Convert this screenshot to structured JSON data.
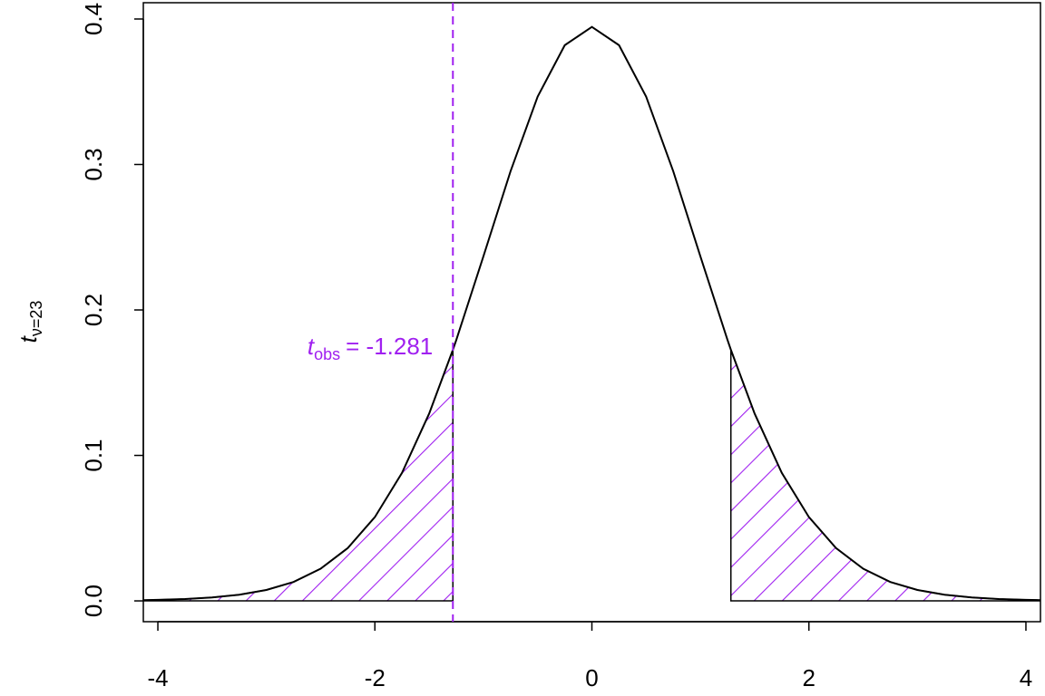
{
  "chart_data": {
    "type": "line",
    "ylabel": {
      "main": "t",
      "sub": "ν=23"
    },
    "x": [
      -4.13,
      -4,
      -3.75,
      -3.5,
      -3.25,
      -3,
      -2.75,
      -2.5,
      -2.25,
      -2,
      -1.75,
      -1.5,
      -1.281,
      -1.25,
      -1,
      -0.75,
      -0.5,
      -0.25,
      0,
      0.25,
      0.5,
      0.75,
      1,
      1.25,
      1.281,
      1.5,
      1.75,
      2,
      2.25,
      2.5,
      2.75,
      3,
      3.25,
      3.5,
      3.75,
      4,
      4.13
    ],
    "values": [
      0.00051,
      0.0007,
      0.00129,
      0.00235,
      0.00423,
      0.0075,
      0.013,
      0.0221,
      0.0363,
      0.0576,
      0.088,
      0.1287,
      0.1726,
      0.1793,
      0.2368,
      0.2953,
      0.3466,
      0.382,
      0.3946,
      0.382,
      0.3466,
      0.2953,
      0.2368,
      0.1793,
      0.1726,
      0.1287,
      0.088,
      0.0576,
      0.0363,
      0.0221,
      0.013,
      0.0075,
      0.00423,
      0.00235,
      0.00129,
      0.0007,
      0.00051
    ],
    "color": "#000000",
    "fill_color": "#a020f0",
    "xlim": [
      -4.134,
      4.134
    ],
    "ylim": [
      -0.0143,
      0.4112
    ],
    "xticks": [
      -4,
      -2,
      0,
      2,
      4
    ],
    "yticks": [
      {
        "value": 0,
        "label": "0.0"
      },
      {
        "value": 0.1,
        "label": "0.1"
      },
      {
        "value": 0.2,
        "label": "0.2"
      },
      {
        "value": 0.3,
        "label": "0.3"
      },
      {
        "value": 0.4,
        "label": "0.4"
      }
    ],
    "annotation": {
      "main": "t",
      "sub": "obs",
      "label": "= -1.281",
      "value": -1.281,
      "color": "#a020f0"
    }
  }
}
